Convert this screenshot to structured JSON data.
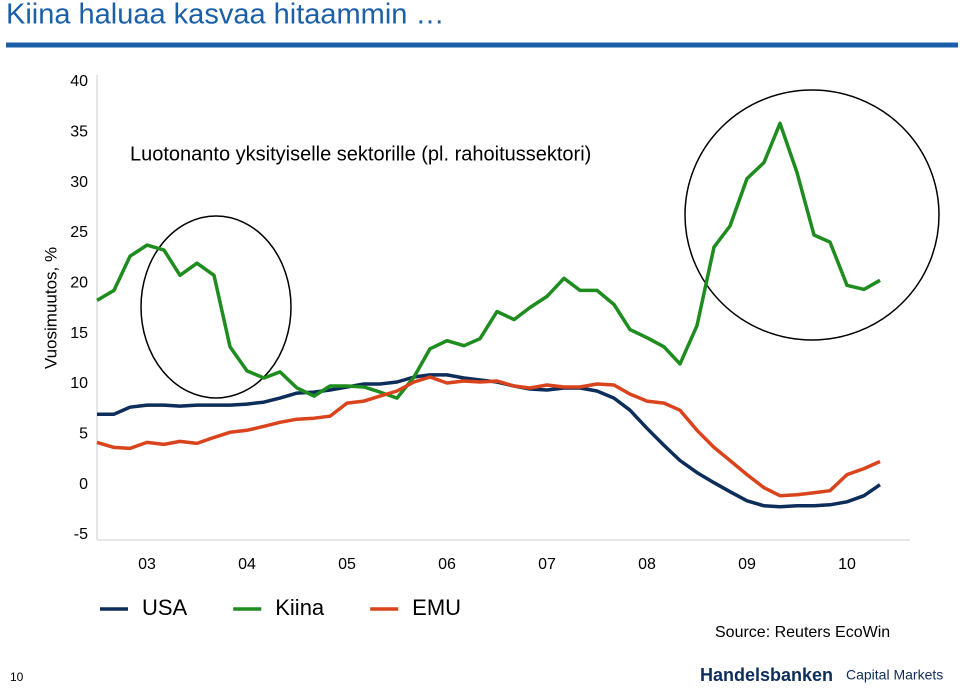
{
  "chart_data": {
    "type": "line",
    "title": "Kiina haluaa kasvaa hitaammin …",
    "y_label": "Vuosimuutos, %",
    "annotation": "Luotonanto yksityiselle sektorille (pl. rahoitussektori)",
    "source": "Source: Reuters EcoWin",
    "page_number": "10",
    "brand": {
      "name": "Handelsbanken",
      "division": "Capital Markets"
    },
    "legend": "bottom",
    "xlim": [
      2003,
      2011.13
    ],
    "xticks": [
      {
        "value": 2003.5,
        "label": "03"
      },
      {
        "value": 2004.5,
        "label": "04"
      },
      {
        "value": 2005.5,
        "label": "05"
      },
      {
        "value": 2006.5,
        "label": "06"
      },
      {
        "value": 2007.5,
        "label": "07"
      },
      {
        "value": 2008.5,
        "label": "08"
      },
      {
        "value": 2009.5,
        "label": "09"
      },
      {
        "value": 2010.5,
        "label": "10"
      }
    ],
    "ylim": [
      -5,
      40
    ],
    "yticks": [
      -5,
      0,
      5,
      10,
      15,
      20,
      25,
      30,
      35,
      40
    ],
    "x": [
      2003,
      2003.17,
      2003.33,
      2003.5,
      2003.67,
      2003.83,
      2004,
      2004.17,
      2004.33,
      2004.5,
      2004.67,
      2004.83,
      2005,
      2005.17,
      2005.33,
      2005.5,
      2005.67,
      2005.83,
      2006,
      2006.17,
      2006.33,
      2006.5,
      2006.67,
      2006.83,
      2007,
      2007.17,
      2007.33,
      2007.5,
      2007.67,
      2007.83,
      2008,
      2008.17,
      2008.33,
      2008.5,
      2008.67,
      2008.83,
      2009,
      2009.17,
      2009.33,
      2009.5,
      2009.67,
      2009.83,
      2010,
      2010.17,
      2010.33,
      2010.5,
      2010.67,
      2010.83
    ],
    "series": [
      {
        "name": "USA",
        "color": "#0d2d5a",
        "values": [
          7.0,
          7.0,
          7.7,
          7.9,
          7.9,
          7.8,
          7.9,
          7.9,
          7.9,
          8.0,
          8.2,
          8.6,
          9.1,
          9.2,
          9.4,
          9.7,
          10.0,
          10.0,
          10.2,
          10.7,
          10.9,
          10.9,
          10.6,
          10.4,
          10.2,
          9.8,
          9.5,
          9.4,
          9.6,
          9.6,
          9.3,
          8.6,
          7.4,
          5.6,
          3.9,
          2.4,
          1.2,
          0.2,
          -0.7,
          -1.6,
          -2.1,
          -2.2,
          -2.1,
          -2.1,
          -2.0,
          -1.7,
          -1.1,
          0.0
        ]
      },
      {
        "name": "Kiina",
        "color": "#1e8c1e",
        "values": [
          18.3,
          19.3,
          22.7,
          23.8,
          23.3,
          20.8,
          22.0,
          20.8,
          13.7,
          11.3,
          10.6,
          11.2,
          9.6,
          8.8,
          9.8,
          9.8,
          9.7,
          9.2,
          8.6,
          10.7,
          13.5,
          14.3,
          13.8,
          14.5,
          17.2,
          16.4,
          17.6,
          18.7,
          20.5,
          19.3,
          19.3,
          17.9,
          15.4,
          14.6,
          13.7,
          12.0,
          15.8,
          23.6,
          25.7,
          30.4,
          32.0,
          35.9,
          31.0,
          24.8,
          24.1,
          19.8,
          19.4,
          20.3
        ]
      },
      {
        "name": "EMU",
        "color": "#d9441c",
        "values": [
          4.2,
          3.7,
          3.6,
          4.2,
          4.0,
          4.3,
          4.1,
          4.7,
          5.2,
          5.4,
          5.8,
          6.2,
          6.5,
          6.6,
          6.8,
          8.1,
          8.3,
          8.8,
          9.3,
          10.2,
          10.7,
          10.1,
          10.3,
          10.2,
          10.3,
          9.8,
          9.6,
          9.9,
          9.7,
          9.7,
          10.0,
          9.9,
          9.0,
          8.3,
          8.1,
          7.4,
          5.4,
          3.7,
          2.4,
          1.0,
          -0.3,
          -1.1,
          -1.0,
          -0.8,
          -0.6,
          1.0,
          1.6,
          2.3
        ]
      }
    ]
  }
}
